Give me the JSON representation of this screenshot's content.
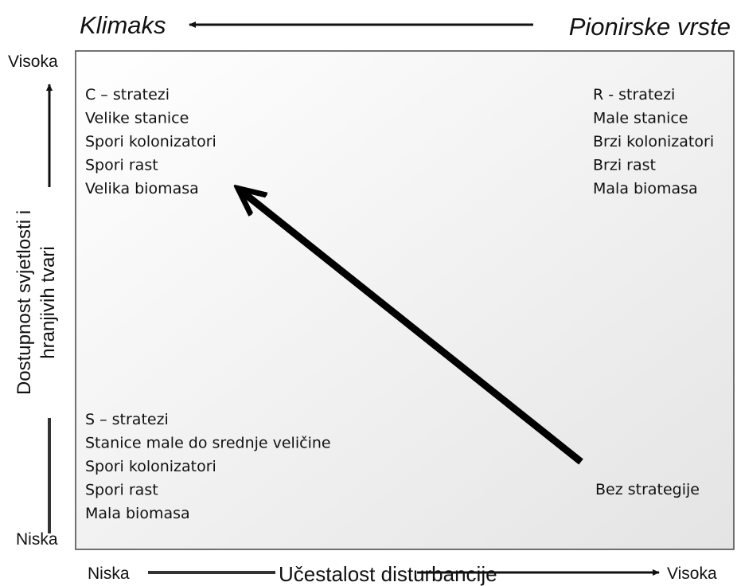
{
  "header": {
    "left": "Klimaks",
    "right": "Pionirske vrste"
  },
  "y_axis": {
    "high": "Visoka",
    "low": "Niska",
    "label": [
      "Dostupnost svjetlosti i",
      "hranjivih tvari"
    ]
  },
  "x_axis": {
    "low": "Niska",
    "label": "Učestalost disturbancije",
    "high": "Visoka"
  },
  "quadrants": {
    "c": [
      "C – stratezi",
      "Velike stanice",
      "Spori kolonizatori",
      "Spori rast",
      "Velika biomasa"
    ],
    "r": [
      "R - stratezi",
      "Male stanice",
      "Brzi kolonizatori",
      "Brzi rast",
      "Mala biomasa"
    ],
    "s": [
      "S – stratezi",
      "Stanice male do srednje veličine",
      "Spori kolonizatori",
      "Spori rast",
      "Mala biomasa"
    ],
    "none": "Bez strategije"
  }
}
